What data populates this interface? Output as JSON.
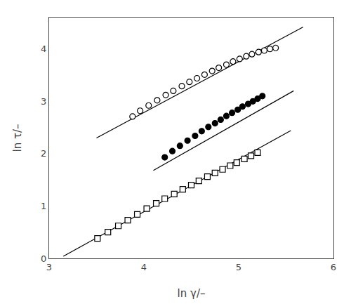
{
  "chart_data": {
    "type": "scatter",
    "xlabel": "ln γ/–",
    "ylabel": "ln τ/–",
    "xlim": [
      3,
      6
    ],
    "ylim": [
      0,
      4.6
    ],
    "xticks": [
      3,
      4,
      5,
      6
    ],
    "yticks": [
      0,
      1,
      2,
      3,
      4
    ],
    "grid": false,
    "series": [
      {
        "type": "line",
        "color": "black",
        "line_style": "solid",
        "x": [
          3.5,
          5.68
        ],
        "values": [
          2.3,
          4.42
        ]
      },
      {
        "type": "scatter",
        "color": "black",
        "marker": "open_circle",
        "x": [
          3.88,
          3.96,
          4.05,
          4.14,
          4.23,
          4.31,
          4.4,
          4.48,
          4.56,
          4.64,
          4.72,
          4.79,
          4.87,
          4.94,
          5.01,
          5.08,
          5.14,
          5.21,
          5.27,
          5.33,
          5.39
        ],
        "values": [
          2.71,
          2.82,
          2.92,
          3.02,
          3.12,
          3.2,
          3.29,
          3.37,
          3.44,
          3.51,
          3.58,
          3.64,
          3.7,
          3.76,
          3.81,
          3.86,
          3.9,
          3.94,
          3.97,
          4.0,
          4.02
        ]
      },
      {
        "type": "line",
        "color": "black",
        "line_style": "solid",
        "x": [
          4.1,
          5.58
        ],
        "values": [
          1.68,
          3.2
        ]
      },
      {
        "type": "scatter",
        "color": "black",
        "marker": "filled_circle",
        "x": [
          4.22,
          4.3,
          4.38,
          4.46,
          4.54,
          4.61,
          4.68,
          4.75,
          4.81,
          4.87,
          4.93,
          4.99,
          5.04,
          5.1,
          5.15,
          5.2,
          5.25
        ],
        "values": [
          1.93,
          2.05,
          2.15,
          2.25,
          2.34,
          2.43,
          2.51,
          2.58,
          2.65,
          2.72,
          2.78,
          2.84,
          2.9,
          2.95,
          3.0,
          3.05,
          3.1
        ]
      },
      {
        "type": "line",
        "color": "black",
        "line_style": "solid",
        "x": [
          3.15,
          5.55
        ],
        "values": [
          0.04,
          2.44
        ]
      },
      {
        "type": "scatter",
        "color": "black",
        "marker": "open_square",
        "x": [
          3.51,
          3.62,
          3.73,
          3.83,
          3.93,
          4.03,
          4.13,
          4.22,
          4.32,
          4.41,
          4.5,
          4.58,
          4.67,
          4.75,
          4.83,
          4.91,
          4.98,
          5.06,
          5.13,
          5.2
        ],
        "values": [
          0.38,
          0.5,
          0.62,
          0.73,
          0.84,
          0.95,
          1.05,
          1.14,
          1.23,
          1.32,
          1.4,
          1.48,
          1.56,
          1.63,
          1.7,
          1.77,
          1.83,
          1.9,
          1.96,
          2.02
        ]
      }
    ]
  }
}
